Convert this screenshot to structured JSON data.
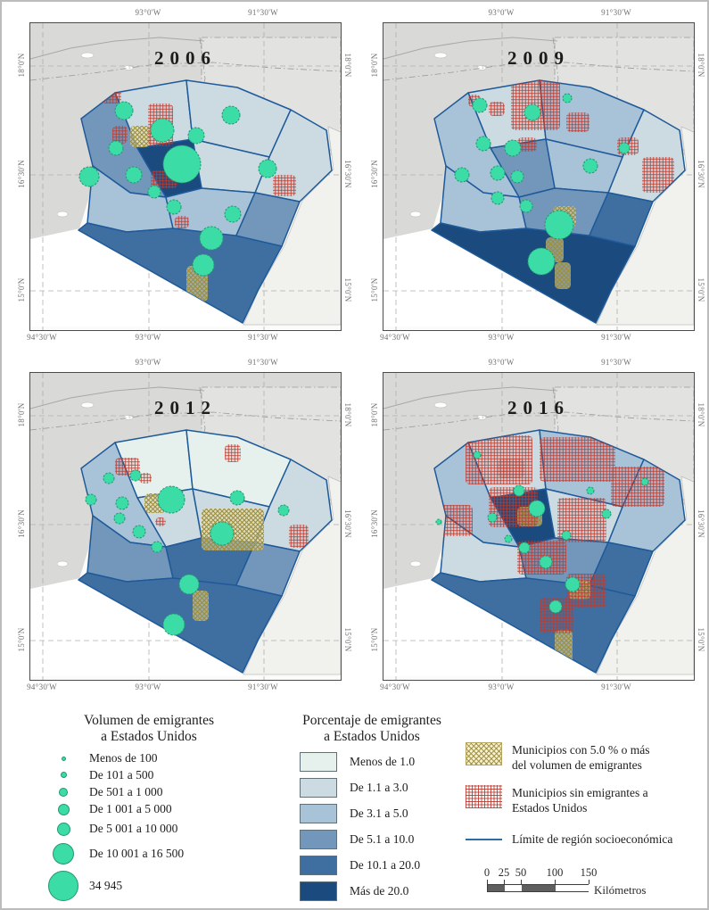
{
  "axis": {
    "top": [
      "93°0'W",
      "91°30'W"
    ],
    "bottom": [
      "94°30'W",
      "93°0'W",
      "91°30'W"
    ],
    "left": [
      "18°0'N",
      "16°30'N",
      "15°0'N"
    ],
    "right": [
      "18°0'N",
      "16°30'N",
      "15°0'N"
    ]
  },
  "panels": [
    {
      "year": "2006",
      "region_classes": {
        "norte": 2,
        "selva_norte": 2,
        "este": 2,
        "altos": 2,
        "centro": 6,
        "valles": 4,
        "frailesca": 3,
        "sierra": 3,
        "fronteriza": 4,
        "costa": 5
      },
      "circles": [
        [
          105,
          98,
          10
        ],
        [
          148,
          120,
          13
        ],
        [
          170,
          158,
          21
        ],
        [
          96,
          140,
          8
        ],
        [
          66,
          172,
          11
        ],
        [
          116,
          170,
          9
        ],
        [
          225,
          103,
          10
        ],
        [
          186,
          126,
          9
        ],
        [
          266,
          163,
          10
        ],
        [
          161,
          206,
          8
        ],
        [
          227,
          214,
          9
        ],
        [
          203,
          241,
          13
        ],
        [
          194,
          271,
          12
        ],
        [
          139,
          189,
          7
        ]
      ],
      "red_patches": [
        [
          80,
          50,
          22,
          40
        ],
        [
          132,
          90,
          28,
          48
        ],
        [
          92,
          115,
          17,
          20
        ],
        [
          135,
          165,
          30,
          20
        ],
        [
          272,
          170,
          26,
          24
        ],
        [
          162,
          216,
          16,
          14
        ]
      ],
      "yellow_patches": [
        [
          112,
          115,
          22,
          24
        ],
        [
          175,
          272,
          24,
          40
        ]
      ]
    },
    {
      "year": "2009",
      "region_classes": {
        "norte": 2,
        "selva_norte": 3,
        "este": 2,
        "altos": 3,
        "centro": 4,
        "valles": 3,
        "frailesca": 3,
        "sierra": 4,
        "fronteriza": 5,
        "costa": 6
      },
      "circles": [
        [
          108,
          92,
          8
        ],
        [
          167,
          100,
          9
        ],
        [
          206,
          84,
          5
        ],
        [
          145,
          140,
          9
        ],
        [
          112,
          135,
          8
        ],
        [
          88,
          170,
          8
        ],
        [
          128,
          168,
          8
        ],
        [
          150,
          172,
          7
        ],
        [
          232,
          160,
          8
        ],
        [
          270,
          140,
          6
        ],
        [
          160,
          205,
          7
        ],
        [
          128,
          196,
          7
        ],
        [
          197,
          226,
          16
        ],
        [
          177,
          267,
          15
        ]
      ],
      "red_patches": [
        [
          143,
          62,
          55,
          58
        ],
        [
          118,
          88,
          18,
          16
        ],
        [
          205,
          100,
          26,
          22
        ],
        [
          150,
          128,
          22,
          16
        ],
        [
          290,
          150,
          36,
          40
        ],
        [
          262,
          128,
          24,
          20
        ],
        [
          95,
          80,
          14,
          14
        ]
      ],
      "yellow_patches": [
        [
          190,
          205,
          26,
          24
        ],
        [
          182,
          240,
          20,
          28
        ],
        [
          192,
          268,
          18,
          30
        ]
      ]
    },
    {
      "year": "2012",
      "region_classes": {
        "norte": 1,
        "selva_norte": 1,
        "este": 2,
        "altos": 2,
        "centro": 2,
        "valles": 3,
        "frailesca": 4,
        "sierra": 5,
        "fronteriza": 4,
        "costa": 5
      },
      "circles": [
        [
          88,
          118,
          6
        ],
        [
          118,
          115,
          6
        ],
        [
          68,
          142,
          6
        ],
        [
          103,
          146,
          7
        ],
        [
          158,
          142,
          15
        ],
        [
          232,
          140,
          8
        ],
        [
          284,
          154,
          6
        ],
        [
          100,
          163,
          6
        ],
        [
          122,
          178,
          7
        ],
        [
          215,
          180,
          13
        ],
        [
          178,
          237,
          11
        ],
        [
          161,
          282,
          12
        ],
        [
          142,
          195,
          6
        ]
      ],
      "red_patches": [
        [
          95,
          95,
          28,
          20
        ],
        [
          122,
          112,
          14,
          12
        ],
        [
          218,
          80,
          18,
          20
        ],
        [
          140,
          162,
          12,
          10
        ],
        [
          290,
          170,
          22,
          26
        ],
        [
          158,
          128,
          8,
          8
        ]
      ],
      "yellow_patches": [
        [
          192,
          152,
          70,
          47
        ],
        [
          128,
          135,
          24,
          22
        ],
        [
          182,
          244,
          18,
          34
        ]
      ]
    },
    {
      "year": "2016",
      "region_classes": {
        "norte": 2,
        "selva_norte": 3,
        "este": 3,
        "altos": 2,
        "centro": 6,
        "valles": 3,
        "frailesca": 2,
        "sierra": 4,
        "fronteriza": 5,
        "costa": 5
      },
      "circles": [
        [
          105,
          92,
          4
        ],
        [
          152,
          132,
          6
        ],
        [
          172,
          152,
          9
        ],
        [
          122,
          162,
          5
        ],
        [
          250,
          158,
          5
        ],
        [
          293,
          122,
          4
        ],
        [
          158,
          196,
          6
        ],
        [
          182,
          212,
          7
        ],
        [
          212,
          237,
          8
        ],
        [
          193,
          262,
          7
        ],
        [
          232,
          132,
          4
        ],
        [
          62,
          167,
          3
        ],
        [
          140,
          186,
          4
        ],
        [
          205,
          182,
          5
        ]
      ],
      "red_patches": [
        [
          92,
          70,
          75,
          55
        ],
        [
          175,
          72,
          85,
          50
        ],
        [
          255,
          105,
          60,
          45
        ],
        [
          118,
          128,
          55,
          45
        ],
        [
          195,
          140,
          55,
          50
        ],
        [
          62,
          148,
          38,
          35
        ],
        [
          150,
          188,
          55,
          38
        ],
        [
          205,
          225,
          45,
          38
        ],
        [
          175,
          252,
          38,
          40
        ],
        [
          128,
          96,
          30,
          22
        ]
      ],
      "yellow_patches": [
        [
          150,
          150,
          28,
          22
        ],
        [
          208,
          232,
          24,
          22
        ],
        [
          192,
          288,
          20,
          40
        ],
        [
          48,
          200,
          18,
          13
        ]
      ]
    }
  ],
  "legend": {
    "volume": {
      "title_line1": "Volumen de emigrantes",
      "title_line2": "a Estados Unidos",
      "items": [
        {
          "label": "Menos de 100",
          "r": 2.5
        },
        {
          "label": "De 101 a 500",
          "r": 3.5
        },
        {
          "label": "De 501 a 1 000",
          "r": 5
        },
        {
          "label": "De 1 001 a 5 000",
          "r": 6.5
        },
        {
          "label": "De 5 001 a 10 000",
          "r": 7.5
        },
        {
          "label": "De 10 001 a 16 500",
          "r": 12
        },
        {
          "label": "34 945",
          "r": 17
        }
      ]
    },
    "percent": {
      "title_line1": "Porcentaje de emigrantes",
      "title_line2": "a Estados Unidos",
      "items": [
        {
          "label": "Menos de 1.0",
          "color": "#e6f1ee"
        },
        {
          "label": "De 1.1 a 3.0",
          "color": "#ccdbe2"
        },
        {
          "label": "De 3.1 a 5.0",
          "color": "#a8c2d8"
        },
        {
          "label": "De 5.1 a 10.0",
          "color": "#7396bb"
        },
        {
          "label": "De 10.1 a 20.0",
          "color": "#3f6fa0"
        },
        {
          "label": "Más de 20.0",
          "color": "#1a4a7e"
        }
      ]
    },
    "symbols": {
      "yellow_line1": "Municipios con 5.0 % o más",
      "yellow_line2": "del volumen de emigrantes",
      "red_line1": "Municipios sin emigrantes a",
      "red_line2": "Estados Unidos",
      "boundary_label": "Límite de región socioeconómica"
    },
    "scalebar": {
      "ticks": [
        0,
        25,
        50,
        100,
        150
      ],
      "unit": "Kilómetros"
    }
  },
  "colors": {
    "percent_scale": [
      "#e6f1ee",
      "#ccdbe2",
      "#a8c2d8",
      "#7396bb",
      "#3f6fa0",
      "#1a4a7e"
    ],
    "circle_fill": "#3bdca5",
    "circle_stroke": "#259673",
    "no_emigrants_hatch": "#bf392b",
    "volume_hatch": "#9c8d3f",
    "region_boundary": "#1e5a99",
    "neighbor_land": "#d9d9d7",
    "foreign_land": "#f1f1ee",
    "sea": "#ffffff"
  }
}
